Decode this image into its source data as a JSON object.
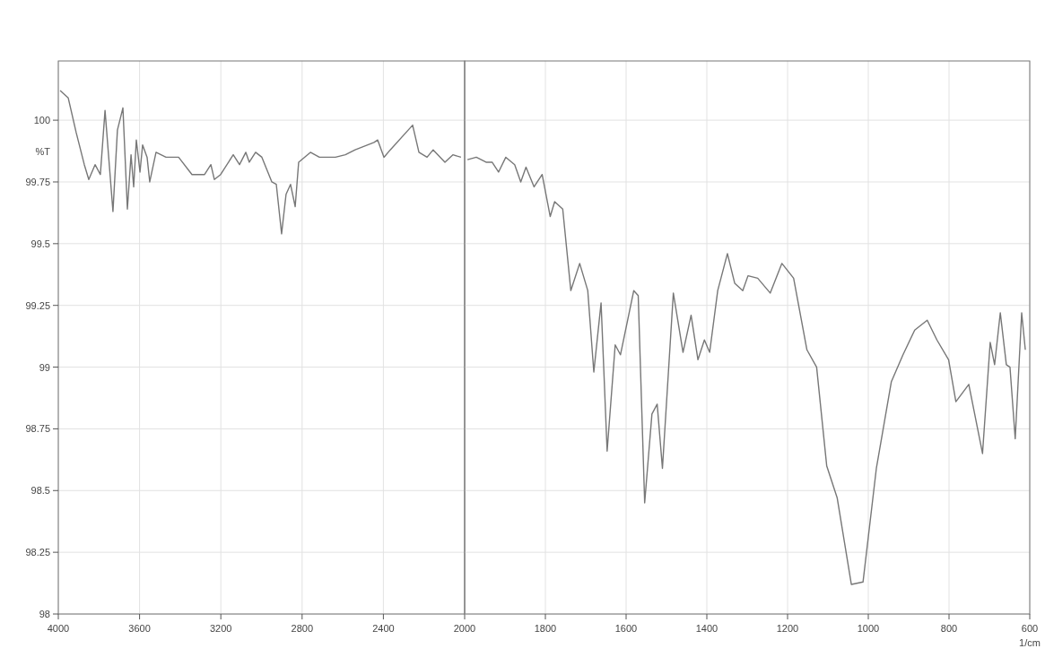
{
  "chart_data": [
    {
      "type": "line",
      "ylabel": "%T",
      "xlim": [
        4000,
        2000
      ],
      "ylim": [
        98,
        100.24
      ],
      "xticks": [
        4000,
        3600,
        3200,
        2800,
        2400,
        2000
      ],
      "yticks": [
        98,
        98.25,
        98.5,
        98.75,
        99,
        99.25,
        99.5,
        99.75,
        100
      ],
      "grid": true,
      "series": [
        {
          "color": "#777777",
          "x": [
            3991,
            3951,
            3912,
            3872,
            3850,
            3819,
            3793,
            3770,
            3731,
            3709,
            3682,
            3660,
            3642,
            3629,
            3616,
            3598,
            3585,
            3563,
            3550,
            3519,
            3470,
            3408,
            3342,
            3280,
            3249,
            3232,
            3201,
            3139,
            3108,
            3077,
            3060,
            3029,
            2998,
            2949,
            2927,
            2901,
            2879,
            2857,
            2834,
            2817,
            2759,
            2715,
            2636,
            2587,
            2539,
            2446,
            2428,
            2397,
            2366,
            2256,
            2225,
            2185,
            2155,
            2097,
            2058,
            2018
          ],
          "values": [
            100.12,
            100.09,
            99.95,
            99.82,
            99.76,
            99.82,
            99.78,
            100.04,
            99.63,
            99.96,
            100.05,
            99.64,
            99.86,
            99.73,
            99.92,
            99.79,
            99.9,
            99.85,
            99.75,
            99.87,
            99.85,
            99.85,
            99.78,
            99.78,
            99.82,
            99.76,
            99.78,
            99.86,
            99.82,
            99.87,
            99.83,
            99.87,
            99.85,
            99.75,
            99.74,
            99.54,
            99.7,
            99.74,
            99.65,
            99.83,
            99.87,
            99.85,
            99.85,
            99.86,
            99.88,
            99.91,
            99.92,
            99.85,
            99.88,
            99.98,
            99.87,
            99.85,
            99.88,
            99.83,
            99.86,
            99.85
          ]
        }
      ]
    },
    {
      "type": "line",
      "xlabel": "1/cm",
      "tick_labels": "x",
      "xlim": [
        2000,
        600
      ],
      "ylim": [
        98,
        100.24
      ],
      "xticks": [
        1800,
        1600,
        1400,
        1200,
        1000,
        800,
        600
      ],
      "yticks": [
        98,
        98.25,
        98.5,
        98.75,
        99,
        99.25,
        99.5,
        99.75,
        100
      ],
      "grid": true,
      "series": [
        {
          "color": "#777777",
          "x": [
            1993,
            1971,
            1947,
            1932,
            1916,
            1898,
            1876,
            1861,
            1848,
            1828,
            1808,
            1788,
            1777,
            1757,
            1737,
            1715,
            1695,
            1680,
            1662,
            1647,
            1627,
            1614,
            1581,
            1570,
            1554,
            1536,
            1523,
            1510,
            1483,
            1459,
            1439,
            1422,
            1406,
            1393,
            1373,
            1349,
            1331,
            1311,
            1298,
            1274,
            1243,
            1214,
            1185,
            1152,
            1128,
            1103,
            1077,
            1042,
            1013,
            980,
            943,
            914,
            885,
            854,
            830,
            801,
            783,
            751,
            717,
            698,
            687,
            673,
            658,
            649,
            636,
            620,
            611
          ],
          "values": [
            99.84,
            99.85,
            99.83,
            99.83,
            99.79,
            99.85,
            99.82,
            99.75,
            99.81,
            99.73,
            99.78,
            99.61,
            99.67,
            99.64,
            99.31,
            99.42,
            99.31,
            98.98,
            99.26,
            98.66,
            99.09,
            99.05,
            99.31,
            99.29,
            98.45,
            98.81,
            98.85,
            98.59,
            99.3,
            99.06,
            99.21,
            99.03,
            99.11,
            99.06,
            99.31,
            99.46,
            99.34,
            99.31,
            99.37,
            99.36,
            99.3,
            99.42,
            99.36,
            99.07,
            99,
            98.6,
            98.47,
            98.12,
            98.13,
            98.59,
            98.94,
            99.05,
            99.15,
            99.19,
            99.11,
            99.03,
            98.86,
            98.93,
            98.65,
            99.1,
            99.01,
            99.22,
            99.01,
            99,
            98.71,
            99.22,
            99.07
          ]
        }
      ]
    }
  ]
}
